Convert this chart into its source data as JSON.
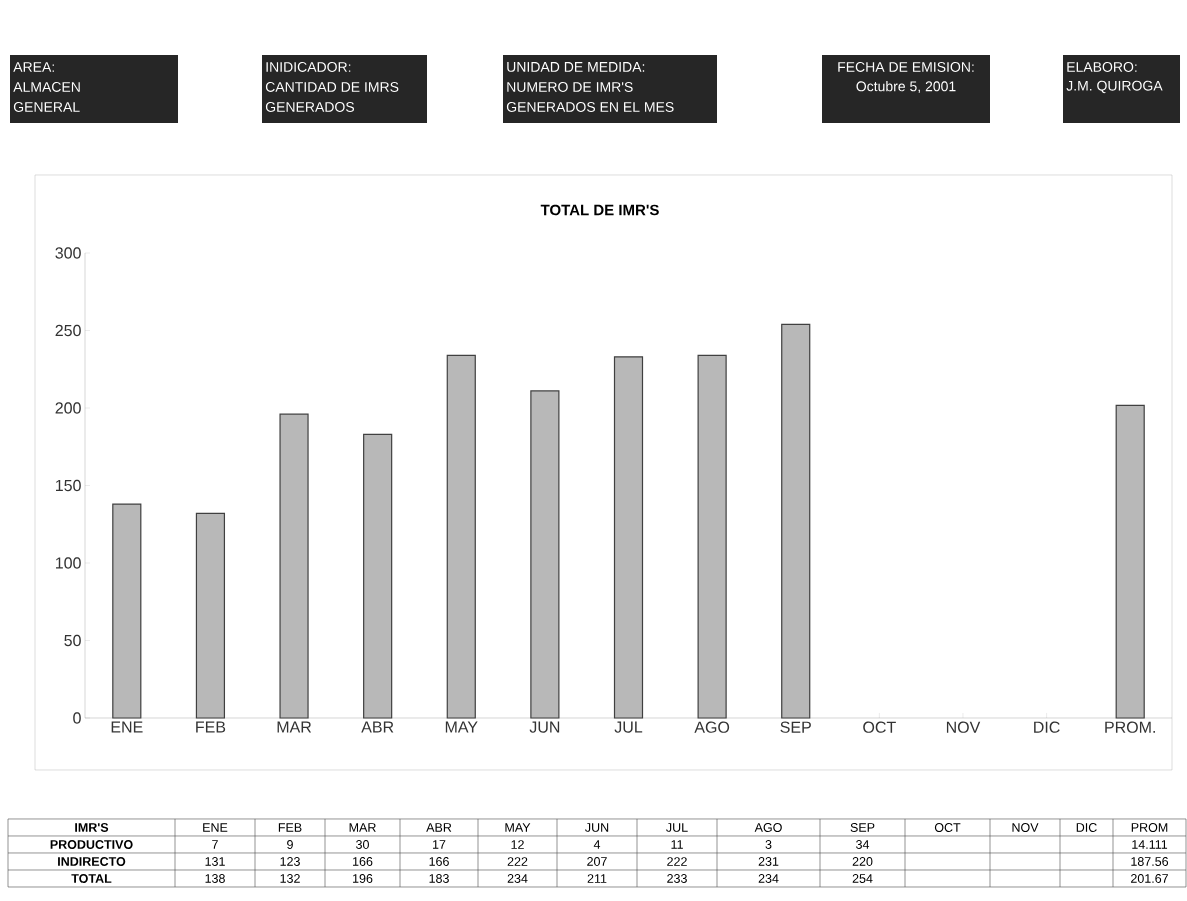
{
  "chart_data": {
    "type": "bar",
    "title": "TOTAL DE IMR'S",
    "categories": [
      "ENE",
      "FEB",
      "MAR",
      "ABR",
      "MAY",
      "JUN",
      "JUL",
      "AGO",
      "SEP",
      "OCT",
      "NOV",
      "DIC",
      "PROM."
    ],
    "values": [
      138,
      132,
      196,
      183,
      234,
      211,
      233,
      234,
      254,
      null,
      null,
      null,
      201.67
    ],
    "color": "#b8b8b8",
    "ylim": [
      0,
      300
    ],
    "yticks": [
      0,
      50,
      100,
      150,
      200,
      250,
      300
    ],
    "grid": false,
    "annotations": [
      "AREA:",
      "ALMACEN",
      "GENERAL",
      "INIDICADOR:",
      "CANTIDAD DE IMRS",
      "GENERADOS",
      "UNIDAD DE MEDIDA:",
      "NUMERO DE IMR'S",
      "GENERADOS EN EL MES",
      "FECHA DE EMISION:",
      "Octubre 5, 2001",
      "ELABORO:",
      "J.M. QUIROGA",
      "IMR'S",
      "ENE",
      "FEB",
      "MAR",
      "ABR",
      "MAY",
      "JUN",
      "JUL",
      "AGO",
      "SEP",
      "OCT",
      "NOV",
      "DIC",
      "PROM",
      "PRODUCTIVO",
      "7",
      "9",
      "30",
      "17",
      "12",
      "4",
      "11",
      "3",
      "34",
      "14.111",
      "INDIRECTO",
      "131",
      "123",
      "166",
      "166",
      "222",
      "207",
      "222",
      "231",
      "220",
      "187.56",
      "TOTAL",
      "138",
      "132",
      "196",
      "183",
      "234",
      "211",
      "233",
      "234",
      "254",
      "201.67"
    ]
  }
}
